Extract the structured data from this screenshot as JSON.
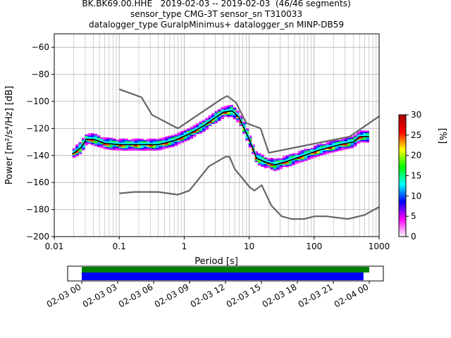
{
  "chart_data": {
    "type": "heatmap",
    "title_lines": [
      "BK.BK69.00.HHE   2019-02-03 -- 2019-02-03  (46/46 segments)",
      "sensor_type CMG-3T sensor_sn T310033",
      "datalogger_type GuralpMinimus+ datalogger_sn MINP-DB59"
    ],
    "xlabel": "Period [s]",
    "ylabel": "Power [m²/s⁴/Hz] [dB]",
    "x_scale": "log",
    "xlim": [
      0.01,
      1000
    ],
    "ylim": [
      -200,
      -50
    ],
    "x_ticks": [
      {
        "value": 0.01,
        "label": "0.01"
      },
      {
        "value": 0.1,
        "label": "0.1"
      },
      {
        "value": 1,
        "label": "1"
      },
      {
        "value": 10,
        "label": "10"
      },
      {
        "value": 100,
        "label": "100"
      },
      {
        "value": 1000,
        "label": "1000"
      }
    ],
    "y_ticks": [
      -60,
      -80,
      -100,
      -120,
      -140,
      -160,
      -180,
      -200
    ],
    "grid": true,
    "colorbar": {
      "label": "[%]",
      "min": 0,
      "max": 30,
      "ticks": [
        0,
        5,
        10,
        15,
        20,
        25,
        30
      ],
      "colors": [
        "#ffffff",
        "#ff00ff",
        "#0000ff",
        "#00ffff",
        "#00ff00",
        "#ffff00",
        "#ff0000",
        "#aa0000"
      ]
    },
    "noise_model_high": [
      [
        0.1,
        -91
      ],
      [
        0.22,
        -97
      ],
      [
        0.32,
        -110
      ],
      [
        0.8,
        -120
      ],
      [
        3.8,
        -98
      ],
      [
        4.6,
        -96
      ],
      [
        6.3,
        -101
      ],
      [
        9,
        -116
      ],
      [
        15,
        -120
      ],
      [
        20,
        -138
      ],
      [
        354,
        -126
      ],
      [
        1000,
        -111
      ]
    ],
    "noise_model_low": [
      [
        0.1,
        -168
      ],
      [
        0.17,
        -167
      ],
      [
        0.4,
        -167
      ],
      [
        0.8,
        -169
      ],
      [
        1.2,
        -166
      ],
      [
        2.4,
        -148
      ],
      [
        4.3,
        -141
      ],
      [
        5,
        -141
      ],
      [
        6,
        -150
      ],
      [
        10,
        -163
      ],
      [
        12,
        -166
      ],
      [
        15.6,
        -162
      ],
      [
        21.9,
        -177
      ],
      [
        31.6,
        -185
      ],
      [
        45,
        -187
      ],
      [
        70,
        -187
      ],
      [
        101,
        -185
      ],
      [
        154,
        -185
      ],
      [
        328,
        -187
      ],
      [
        600,
        -184
      ],
      [
        1000,
        -178
      ]
    ],
    "mode_curve": [
      [
        0.019,
        -139
      ],
      [
        0.026,
        -134
      ],
      [
        0.031,
        -128
      ],
      [
        0.04,
        -128
      ],
      [
        0.06,
        -131
      ],
      [
        0.1,
        -132
      ],
      [
        0.2,
        -132
      ],
      [
        0.4,
        -132
      ],
      [
        0.7,
        -129
      ],
      [
        1.2,
        -124
      ],
      [
        2,
        -118
      ],
      [
        3,
        -112
      ],
      [
        4,
        -108
      ],
      [
        5.5,
        -107
      ],
      [
        7,
        -112
      ],
      [
        10,
        -128
      ],
      [
        13,
        -142
      ],
      [
        18,
        -145
      ],
      [
        25,
        -147
      ],
      [
        40,
        -144
      ],
      [
        70,
        -140
      ],
      [
        120,
        -136
      ],
      [
        250,
        -132
      ],
      [
        400,
        -130
      ],
      [
        500,
        -126
      ],
      [
        700,
        -126
      ]
    ],
    "mean_curve": [
      [
        0.019,
        -138
      ],
      [
        0.026,
        -133
      ],
      [
        0.031,
        -127
      ],
      [
        0.04,
        -127
      ],
      [
        0.06,
        -130
      ],
      [
        0.1,
        -131
      ],
      [
        0.2,
        -131
      ],
      [
        0.4,
        -131
      ],
      [
        0.7,
        -128
      ],
      [
        1.2,
        -123
      ],
      [
        2,
        -117
      ],
      [
        3,
        -111
      ],
      [
        4,
        -107
      ],
      [
        5.5,
        -106
      ],
      [
        7,
        -111
      ],
      [
        10,
        -127
      ],
      [
        13,
        -141
      ],
      [
        18,
        -144
      ],
      [
        25,
        -146
      ],
      [
        40,
        -143
      ],
      [
        70,
        -139
      ],
      [
        120,
        -135
      ],
      [
        250,
        -131
      ],
      [
        400,
        -129
      ],
      [
        500,
        -125
      ],
      [
        700,
        -125
      ]
    ],
    "mode_color": "#000000",
    "mean_color": "#00ffff",
    "noise_model_color": "#666666"
  },
  "coverage": {
    "tick_labels": [
      "02-03 00",
      "02-03 03",
      "02-03 06",
      "02-03 09",
      "02-03 12",
      "02-03 15",
      "02-03 18",
      "02-03 21",
      "02-04 00"
    ],
    "green_bar": {
      "start_fraction": 0.0,
      "end_fraction": 1.0
    },
    "blue_bar": {
      "start_fraction": 0.0,
      "end_fraction": 0.98
    },
    "colors": {
      "green": "#008000",
      "blue": "#0000ff"
    }
  }
}
